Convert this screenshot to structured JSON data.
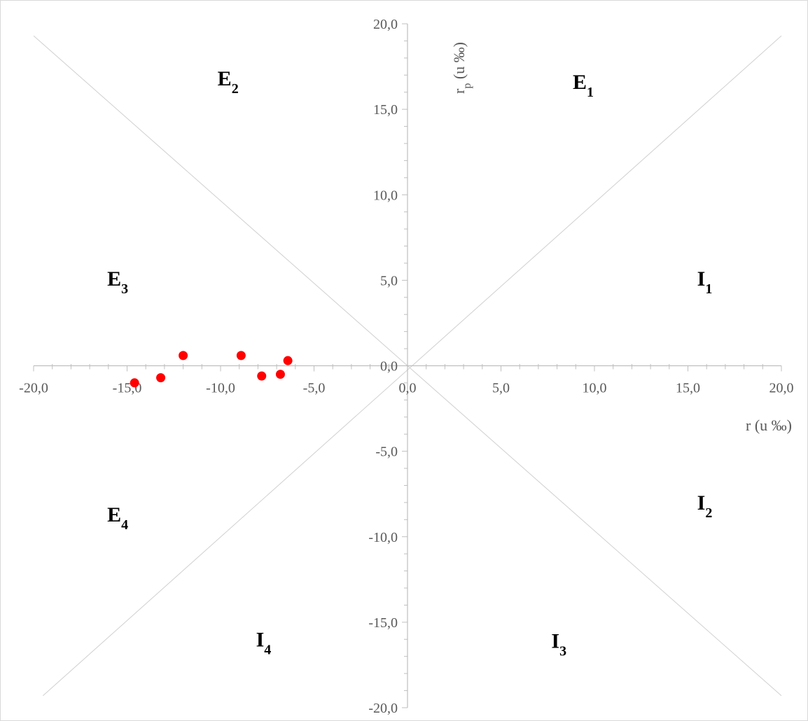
{
  "chart_data": {
    "type": "scatter",
    "title": "",
    "xlabel": "r (u ‰)",
    "ylabel": "rp (u ‰)",
    "ylabel_main": "r",
    "ylabel_sub": "p",
    "ylabel_rest": " (u ‰)",
    "xlim": [
      -20,
      20
    ],
    "ylim": [
      -20,
      20
    ],
    "x_ticks": [
      "-20,0",
      "-15,0",
      "-10,0",
      "-5,0",
      "0,0",
      "5,0",
      "10,0",
      "15,0",
      "20,0"
    ],
    "x_tick_values": [
      -20,
      -15,
      -10,
      -5,
      0,
      5,
      10,
      15,
      20
    ],
    "y_ticks": [
      "20,0",
      "15,0",
      "10,0",
      "5,0",
      "0,0",
      "-5,0",
      "-10,0",
      "-15,0",
      "-20,0"
    ],
    "y_tick_values": [
      20,
      15,
      10,
      5,
      0,
      -5,
      -10,
      -15,
      -20
    ],
    "grid": false,
    "legend": "none",
    "series": [
      {
        "color": "#ff0000",
        "points": [
          {
            "x": -14.6,
            "y": -1.0
          },
          {
            "x": -13.2,
            "y": -0.7
          },
          {
            "x": -12.0,
            "y": 0.6
          },
          {
            "x": -8.9,
            "y": 0.6
          },
          {
            "x": -7.8,
            "y": -0.6
          },
          {
            "x": -6.8,
            "y": -0.5
          },
          {
            "x": -6.4,
            "y": 0.3
          }
        ]
      }
    ],
    "diagonals": [
      {
        "from": {
          "x": -20,
          "y": 19.3
        },
        "to": {
          "x": 20,
          "y": -19.3
        }
      },
      {
        "from": {
          "x": -19.5,
          "y": -19.3
        },
        "to": {
          "x": 20,
          "y": 19.3
        }
      }
    ],
    "region_labels": [
      {
        "main": "E",
        "sub": "2",
        "x": -9.6,
        "y": 16.8
      },
      {
        "main": "E",
        "sub": "1",
        "x": 9.4,
        "y": 16.6
      },
      {
        "main": "E",
        "sub": "3",
        "x": -15.5,
        "y": 5.1
      },
      {
        "main": "I",
        "sub": "1",
        "x": 15.9,
        "y": 5.1
      },
      {
        "main": "E",
        "sub": "4",
        "x": -15.5,
        "y": -8.7
      },
      {
        "main": "I",
        "sub": "2",
        "x": 15.9,
        "y": -8.0
      },
      {
        "main": "I",
        "sub": "4",
        "x": -7.7,
        "y": -16.0
      },
      {
        "main": "I",
        "sub": "3",
        "x": 8.1,
        "y": -16.1
      }
    ],
    "colors": {
      "axis": "#bfbfbf",
      "diagonal": "#d0d0d0",
      "tick_label": "#595959",
      "point": "#ff0000",
      "frame": "#d9d9d9"
    }
  }
}
